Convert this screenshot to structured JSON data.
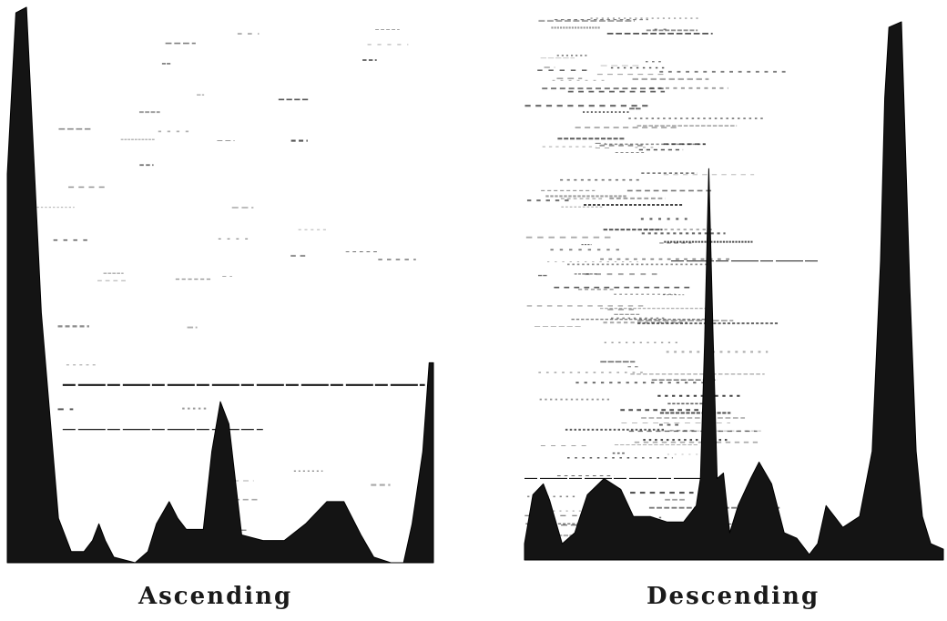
{
  "chart_data": [
    {
      "type": "area",
      "name": "Ascending",
      "caption": "Ascending",
      "x_range": [
        0,
        1
      ],
      "y_range": [
        0,
        1
      ],
      "axes": "none",
      "grid": false,
      "fill_color": "#141414",
      "profile": [
        [
          0.0,
          0.7
        ],
        [
          0.02,
          0.99
        ],
        [
          0.045,
          1.0
        ],
        [
          0.08,
          0.45
        ],
        [
          0.12,
          0.08
        ],
        [
          0.15,
          0.02
        ],
        [
          0.18,
          0.02
        ],
        [
          0.2,
          0.04
        ],
        [
          0.215,
          0.07
        ],
        [
          0.23,
          0.04
        ],
        [
          0.25,
          0.01
        ],
        [
          0.3,
          0.0
        ],
        [
          0.33,
          0.02
        ],
        [
          0.35,
          0.07
        ],
        [
          0.38,
          0.11
        ],
        [
          0.4,
          0.08
        ],
        [
          0.42,
          0.06
        ],
        [
          0.46,
          0.06
        ],
        [
          0.48,
          0.2
        ],
        [
          0.5,
          0.29
        ],
        [
          0.52,
          0.25
        ],
        [
          0.55,
          0.05
        ],
        [
          0.6,
          0.04
        ],
        [
          0.65,
          0.04
        ],
        [
          0.7,
          0.07
        ],
        [
          0.75,
          0.11
        ],
        [
          0.79,
          0.11
        ],
        [
          0.83,
          0.05
        ],
        [
          0.86,
          0.01
        ],
        [
          0.9,
          0.0
        ],
        [
          0.93,
          0.0
        ],
        [
          0.95,
          0.07
        ],
        [
          0.975,
          0.2
        ],
        [
          0.99,
          0.36
        ],
        [
          1.0,
          0.36
        ]
      ]
    },
    {
      "type": "area",
      "name": "Descending",
      "caption": "Descending",
      "x_range": [
        0,
        1
      ],
      "y_range": [
        0,
        1
      ],
      "axes": "none",
      "grid": false,
      "fill_color": "#141414",
      "profile": [
        [
          0.0,
          0.03
        ],
        [
          0.02,
          0.12
        ],
        [
          0.045,
          0.14
        ],
        [
          0.06,
          0.11
        ],
        [
          0.09,
          0.03
        ],
        [
          0.12,
          0.05
        ],
        [
          0.15,
          0.12
        ],
        [
          0.19,
          0.15
        ],
        [
          0.23,
          0.13
        ],
        [
          0.26,
          0.08
        ],
        [
          0.3,
          0.08
        ],
        [
          0.34,
          0.07
        ],
        [
          0.38,
          0.07
        ],
        [
          0.41,
          0.1
        ],
        [
          0.42,
          0.15
        ],
        [
          0.43,
          0.4
        ],
        [
          0.44,
          0.72
        ],
        [
          0.45,
          0.42
        ],
        [
          0.46,
          0.15
        ],
        [
          0.475,
          0.16
        ],
        [
          0.49,
          0.05
        ],
        [
          0.51,
          0.1
        ],
        [
          0.54,
          0.15
        ],
        [
          0.56,
          0.18
        ],
        [
          0.59,
          0.14
        ],
        [
          0.62,
          0.05
        ],
        [
          0.65,
          0.04
        ],
        [
          0.68,
          0.01
        ],
        [
          0.7,
          0.03
        ],
        [
          0.72,
          0.1
        ],
        [
          0.74,
          0.08
        ],
        [
          0.76,
          0.06
        ],
        [
          0.8,
          0.08
        ],
        [
          0.83,
          0.2
        ],
        [
          0.85,
          0.55
        ],
        [
          0.86,
          0.85
        ],
        [
          0.87,
          0.98
        ],
        [
          0.9,
          0.99
        ],
        [
          0.92,
          0.5
        ],
        [
          0.935,
          0.2
        ],
        [
          0.95,
          0.08
        ],
        [
          0.97,
          0.03
        ],
        [
          1.0,
          0.02
        ]
      ]
    }
  ]
}
